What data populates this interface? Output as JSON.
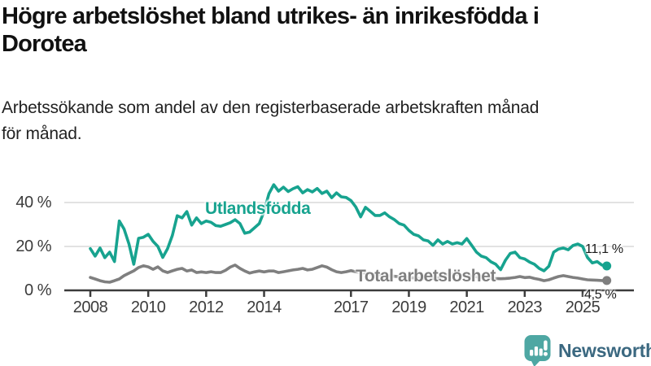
{
  "header": {
    "title": "Högre arbetslöshet bland utrikes- än inrikesfödda i Dorotea",
    "title_lines": [
      "Högre arbetslöshet bland utrikes- än inrikesfödda i",
      "Dorotea"
    ],
    "subtitle": "Arbetssökande som andel av den registerbaserade arbetskraften månad för månad.",
    "subtitle_lines": [
      "Arbetssökande som andel av den registerbaserade arbetskraften månad",
      "för månad."
    ]
  },
  "footer": {
    "brand": "Newsworthy",
    "logo_icon": "bar-chart-speech-bubble-icon",
    "icon_color": "#4ea7a3",
    "brand_color": "#3b6880"
  },
  "chart_data": {
    "type": "line",
    "title": "Högre arbetslöshet bland utrikes- än inrikesfödda i Dorotea",
    "subtitle": "Arbetssökande som andel av den registerbaserade arbetskraften månad för månad.",
    "unit": "%",
    "x_start": 2008,
    "x_step_years": 0.166667,
    "xlim": [
      2007.1,
      2026.7
    ],
    "ylim": [
      0,
      52
    ],
    "grid": "horizontal",
    "grid_color": "#d9d9d9",
    "axis_color": "#3c3c3c",
    "x_ticks": [
      2008,
      2010,
      2012,
      2014,
      2017,
      2019,
      2021,
      2023,
      2025
    ],
    "x_tick_labels": [
      "2008",
      "2010",
      "2012",
      "2014",
      "2017",
      "2019",
      "2021",
      "2023",
      "2025"
    ],
    "y_ticks": [
      0,
      20,
      40
    ],
    "y_tick_labels": [
      "0 %",
      "20 %",
      "40 %"
    ],
    "series": [
      {
        "name": "Utlandsfödda",
        "color": "#17a38f",
        "end_label": "11,1 %",
        "end_value": 11.1,
        "values": [
          19.0,
          15.6,
          19.3,
          14.9,
          17.4,
          13.1,
          31.6,
          27.9,
          21.1,
          11.9,
          23.7,
          24.2,
          25.5,
          22.3,
          20.0,
          15.0,
          19.0,
          25.0,
          34.0,
          33.0,
          35.9,
          29.7,
          33.0,
          30.4,
          31.6,
          31.0,
          29.5,
          29.2,
          30.0,
          30.8,
          32.2,
          30.4,
          26.0,
          26.5,
          28.5,
          30.4,
          36.0,
          44.0,
          48.1,
          45.2,
          47.0,
          45.0,
          46.3,
          47.2,
          44.4,
          45.9,
          44.8,
          46.4,
          44.1,
          45.2,
          42.2,
          44.4,
          42.6,
          42.3,
          40.9,
          38.0,
          33.5,
          37.8,
          36.0,
          34.1,
          34.1,
          35.3,
          33.5,
          32.2,
          30.4,
          29.7,
          27.3,
          25.5,
          24.8,
          23.0,
          22.5,
          20.5,
          23.0,
          21.1,
          22.3,
          21.1,
          21.7,
          21.1,
          23.6,
          20.5,
          17.4,
          15.6,
          14.9,
          13.0,
          11.9,
          9.4,
          13.7,
          16.8,
          17.4,
          14.9,
          14.3,
          12.9,
          11.9,
          10.0,
          8.9,
          11.0,
          17.4,
          18.8,
          19.3,
          18.5,
          20.4,
          21.1,
          20.0,
          15.0,
          12.5,
          13.1,
          11.5,
          11.1
        ]
      },
      {
        "name": "Total arbetslöshet",
        "color": "#7f7f7f",
        "end_label": "4,5 %",
        "end_value": 4.5,
        "values": [
          5.9,
          5.2,
          4.4,
          3.9,
          3.7,
          4.4,
          5.2,
          6.7,
          7.8,
          8.9,
          10.4,
          11.2,
          10.7,
          9.6,
          10.7,
          8.9,
          8.1,
          8.9,
          9.6,
          10.0,
          8.8,
          9.3,
          8.1,
          8.4,
          8.1,
          8.5,
          8.1,
          8.1,
          9.1,
          10.6,
          11.5,
          10.0,
          8.8,
          7.9,
          8.4,
          8.8,
          8.4,
          8.8,
          8.8,
          8.1,
          8.5,
          8.9,
          9.3,
          9.6,
          10.0,
          9.3,
          9.6,
          10.4,
          11.2,
          10.6,
          9.4,
          8.5,
          8.1,
          8.5,
          9.0,
          8.5,
          8.1,
          7.8,
          7.5,
          7.2,
          7.0,
          6.8,
          6.6,
          6.4,
          6.2,
          6.0,
          5.8,
          5.7,
          5.6,
          5.5,
          5.4,
          5.4,
          5.6,
          6.5,
          7.3,
          7.5,
          7.2,
          6.9,
          6.7,
          6.4,
          6.2,
          6.0,
          5.8,
          5.6,
          5.4,
          5.3,
          5.4,
          5.6,
          5.9,
          6.3,
          5.8,
          6.0,
          5.4,
          5.0,
          4.4,
          4.8,
          5.6,
          6.3,
          6.7,
          6.3,
          5.9,
          5.6,
          5.2,
          4.8,
          4.7,
          4.6,
          4.5,
          4.5
        ]
      }
    ]
  }
}
